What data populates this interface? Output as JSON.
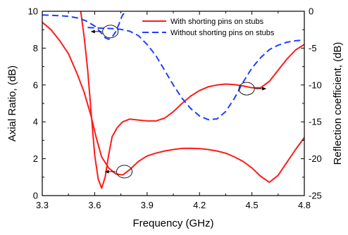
{
  "chart_data": {
    "type": "line",
    "title": "",
    "xlabel": "Frequency (GHz)",
    "ylabel_left": "Axial Ratio, (dB)",
    "ylabel_right": "Reflection coefficient, (dB)",
    "xlim": [
      3.3,
      4.8
    ],
    "ylim_left": [
      0,
      10
    ],
    "ylim_right": [
      -25,
      0
    ],
    "x_ticks": [
      3.3,
      3.6,
      3.9,
      4.2,
      4.5,
      4.8
    ],
    "x_tick_labels": [
      "3.3",
      "3.6",
      "3.9",
      "4.2",
      "4.5",
      "4.8"
    ],
    "y_left_ticks": [
      0,
      2,
      4,
      6,
      8,
      10
    ],
    "y_left_tick_labels": [
      "0",
      "2",
      "4",
      "6",
      "8",
      "10"
    ],
    "y_right_ticks": [
      0,
      -5,
      -10,
      -15,
      -20,
      -25
    ],
    "y_right_tick_labels": [
      "0",
      "-5",
      "-10",
      "-15",
      "-20",
      "-25"
    ],
    "grid": false,
    "legend_position": "top-right",
    "series": [
      {
        "name": "With shorting pins on stubs",
        "axis": "left",
        "color": "#ff1a1a",
        "style": "solid",
        "segments": [
          {
            "x": [
              3.3,
              3.35,
              3.4,
              3.45,
              3.5,
              3.54,
              3.58,
              3.61,
              3.64,
              3.68,
              3.72,
              3.76,
              3.8,
              3.85,
              3.9,
              3.95,
              4.0,
              4.05,
              4.1,
              4.15,
              4.2,
              4.25,
              4.3,
              4.35,
              4.4,
              4.45,
              4.5,
              4.55,
              4.6,
              4.65,
              4.7,
              4.75,
              4.8
            ],
            "y": [
              9.4,
              9.0,
              8.4,
              7.7,
              6.6,
              5.6,
              4.3,
              3.1,
              2.1,
              1.5,
              1.18,
              1.12,
              1.4,
              1.85,
              2.15,
              2.3,
              2.42,
              2.5,
              2.56,
              2.57,
              2.55,
              2.5,
              2.42,
              2.3,
              2.1,
              1.85,
              1.5,
              1.05,
              0.72,
              1.1,
              1.8,
              2.5,
              3.15
            ]
          },
          {
            "x": [
              3.52,
              3.54,
              3.56,
              3.58,
              3.6,
              3.62,
              3.64,
              3.66,
              3.68,
              3.7,
              3.73,
              3.76,
              3.8,
              3.85,
              3.9,
              3.95,
              4.0,
              4.05,
              4.1,
              4.15,
              4.2,
              4.25,
              4.3,
              4.35,
              4.4,
              4.45,
              4.5,
              4.55,
              4.6,
              4.65,
              4.7,
              4.75,
              4.8
            ],
            "y": [
              10.0,
              8.6,
              6.8,
              4.5,
              2.2,
              0.9,
              0.4,
              1.0,
              2.2,
              3.2,
              3.7,
              4.0,
              4.15,
              4.1,
              4.05,
              4.05,
              4.2,
              4.55,
              5.0,
              5.4,
              5.7,
              5.9,
              6.0,
              6.05,
              6.02,
              5.95,
              5.85,
              5.85,
              6.2,
              6.8,
              7.4,
              7.9,
              8.2
            ]
          }
        ]
      },
      {
        "name": "Without shorting pins on stubs",
        "axis": "right",
        "color": "#1f3fff",
        "style": "dashed",
        "segments": [
          {
            "x": [
              3.3,
              3.35,
              3.4,
              3.45,
              3.5,
              3.55,
              3.6,
              3.64,
              3.66,
              3.68,
              3.7,
              3.72,
              3.74,
              3.75,
              3.76,
              3.78
            ],
            "y": [
              -0.5,
              -0.55,
              -0.6,
              -0.7,
              -0.9,
              -1.3,
              -2.0,
              -3.0,
              -3.6,
              -3.8,
              -3.5,
              -2.8,
              -1.7,
              -1.0,
              -0.5,
              0.0
            ]
          },
          {
            "x": [
              3.56,
              3.6,
              3.65,
              3.7,
              3.75,
              3.8,
              3.85,
              3.9,
              3.95,
              4.0,
              4.05,
              4.1,
              4.15,
              4.2,
              4.25,
              4.3,
              4.35,
              4.4,
              4.45,
              4.5,
              4.55,
              4.6,
              4.65,
              4.7,
              4.75,
              4.8
            ],
            "y": [
              -2.2,
              -2.25,
              -2.3,
              -2.35,
              -2.45,
              -2.7,
              -3.3,
              -4.5,
              -6.0,
              -8.0,
              -10.0,
              -11.8,
              -13.2,
              -14.2,
              -14.7,
              -14.6,
              -13.6,
              -11.8,
              -9.6,
              -7.7,
              -6.3,
              -5.2,
              -4.6,
              -4.2,
              -4.0,
              -3.9
            ]
          }
        ]
      }
    ],
    "annotations": [
      {
        "type": "ellipse-arrow",
        "cx": 3.69,
        "cy_left": 8.9,
        "direction": "left",
        "axis_note": "points to left axis"
      },
      {
        "type": "ellipse-arrow",
        "cx": 3.77,
        "cy_left": 1.3,
        "direction": "left",
        "axis_note": "points to left axis"
      },
      {
        "type": "ellipse-arrow",
        "cx": 4.47,
        "cy_left": 5.8,
        "direction": "right",
        "axis_note": "points to right axis"
      }
    ]
  }
}
